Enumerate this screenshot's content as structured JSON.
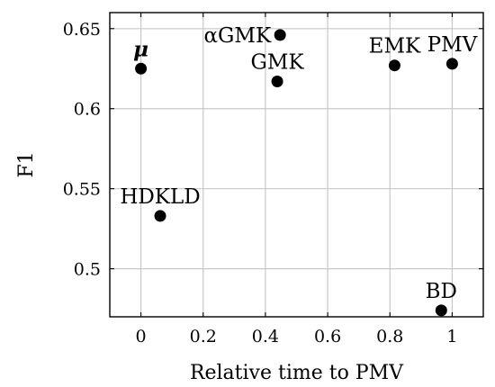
{
  "chart_data": {
    "type": "scatter",
    "xlabel": "Relative time to PMV",
    "ylabel": "F1",
    "xlim": [
      -0.1,
      1.1
    ],
    "ylim": [
      0.47,
      0.66
    ],
    "x_ticks": [
      0,
      0.2,
      0.4,
      0.6,
      0.8,
      1
    ],
    "x_tick_labels": [
      "0",
      "0.2",
      "0.4",
      "0.6",
      "0.8",
      "1"
    ],
    "y_ticks": [
      0.5,
      0.55,
      0.6,
      0.65
    ],
    "y_tick_labels": [
      "0.5",
      "0.55",
      "0.6",
      "0.65"
    ],
    "grid": true,
    "marker_color": "#000000",
    "points": [
      {
        "label": "μ",
        "x": 0.0,
        "y": 0.625,
        "label_pos": "above",
        "italic": true
      },
      {
        "label": "HDKLD",
        "x": 0.062,
        "y": 0.533,
        "label_pos": "above"
      },
      {
        "label": "αGMK",
        "x": 0.447,
        "y": 0.646,
        "label_pos": "left"
      },
      {
        "label": "GMK",
        "x": 0.438,
        "y": 0.617,
        "label_pos": "above"
      },
      {
        "label": "EMK",
        "x": 0.815,
        "y": 0.627,
        "label_pos": "above"
      },
      {
        "label": "PMV",
        "x": 1.0,
        "y": 0.628,
        "label_pos": "above"
      },
      {
        "label": "BD",
        "x": 0.965,
        "y": 0.474,
        "label_pos": "above"
      }
    ]
  }
}
